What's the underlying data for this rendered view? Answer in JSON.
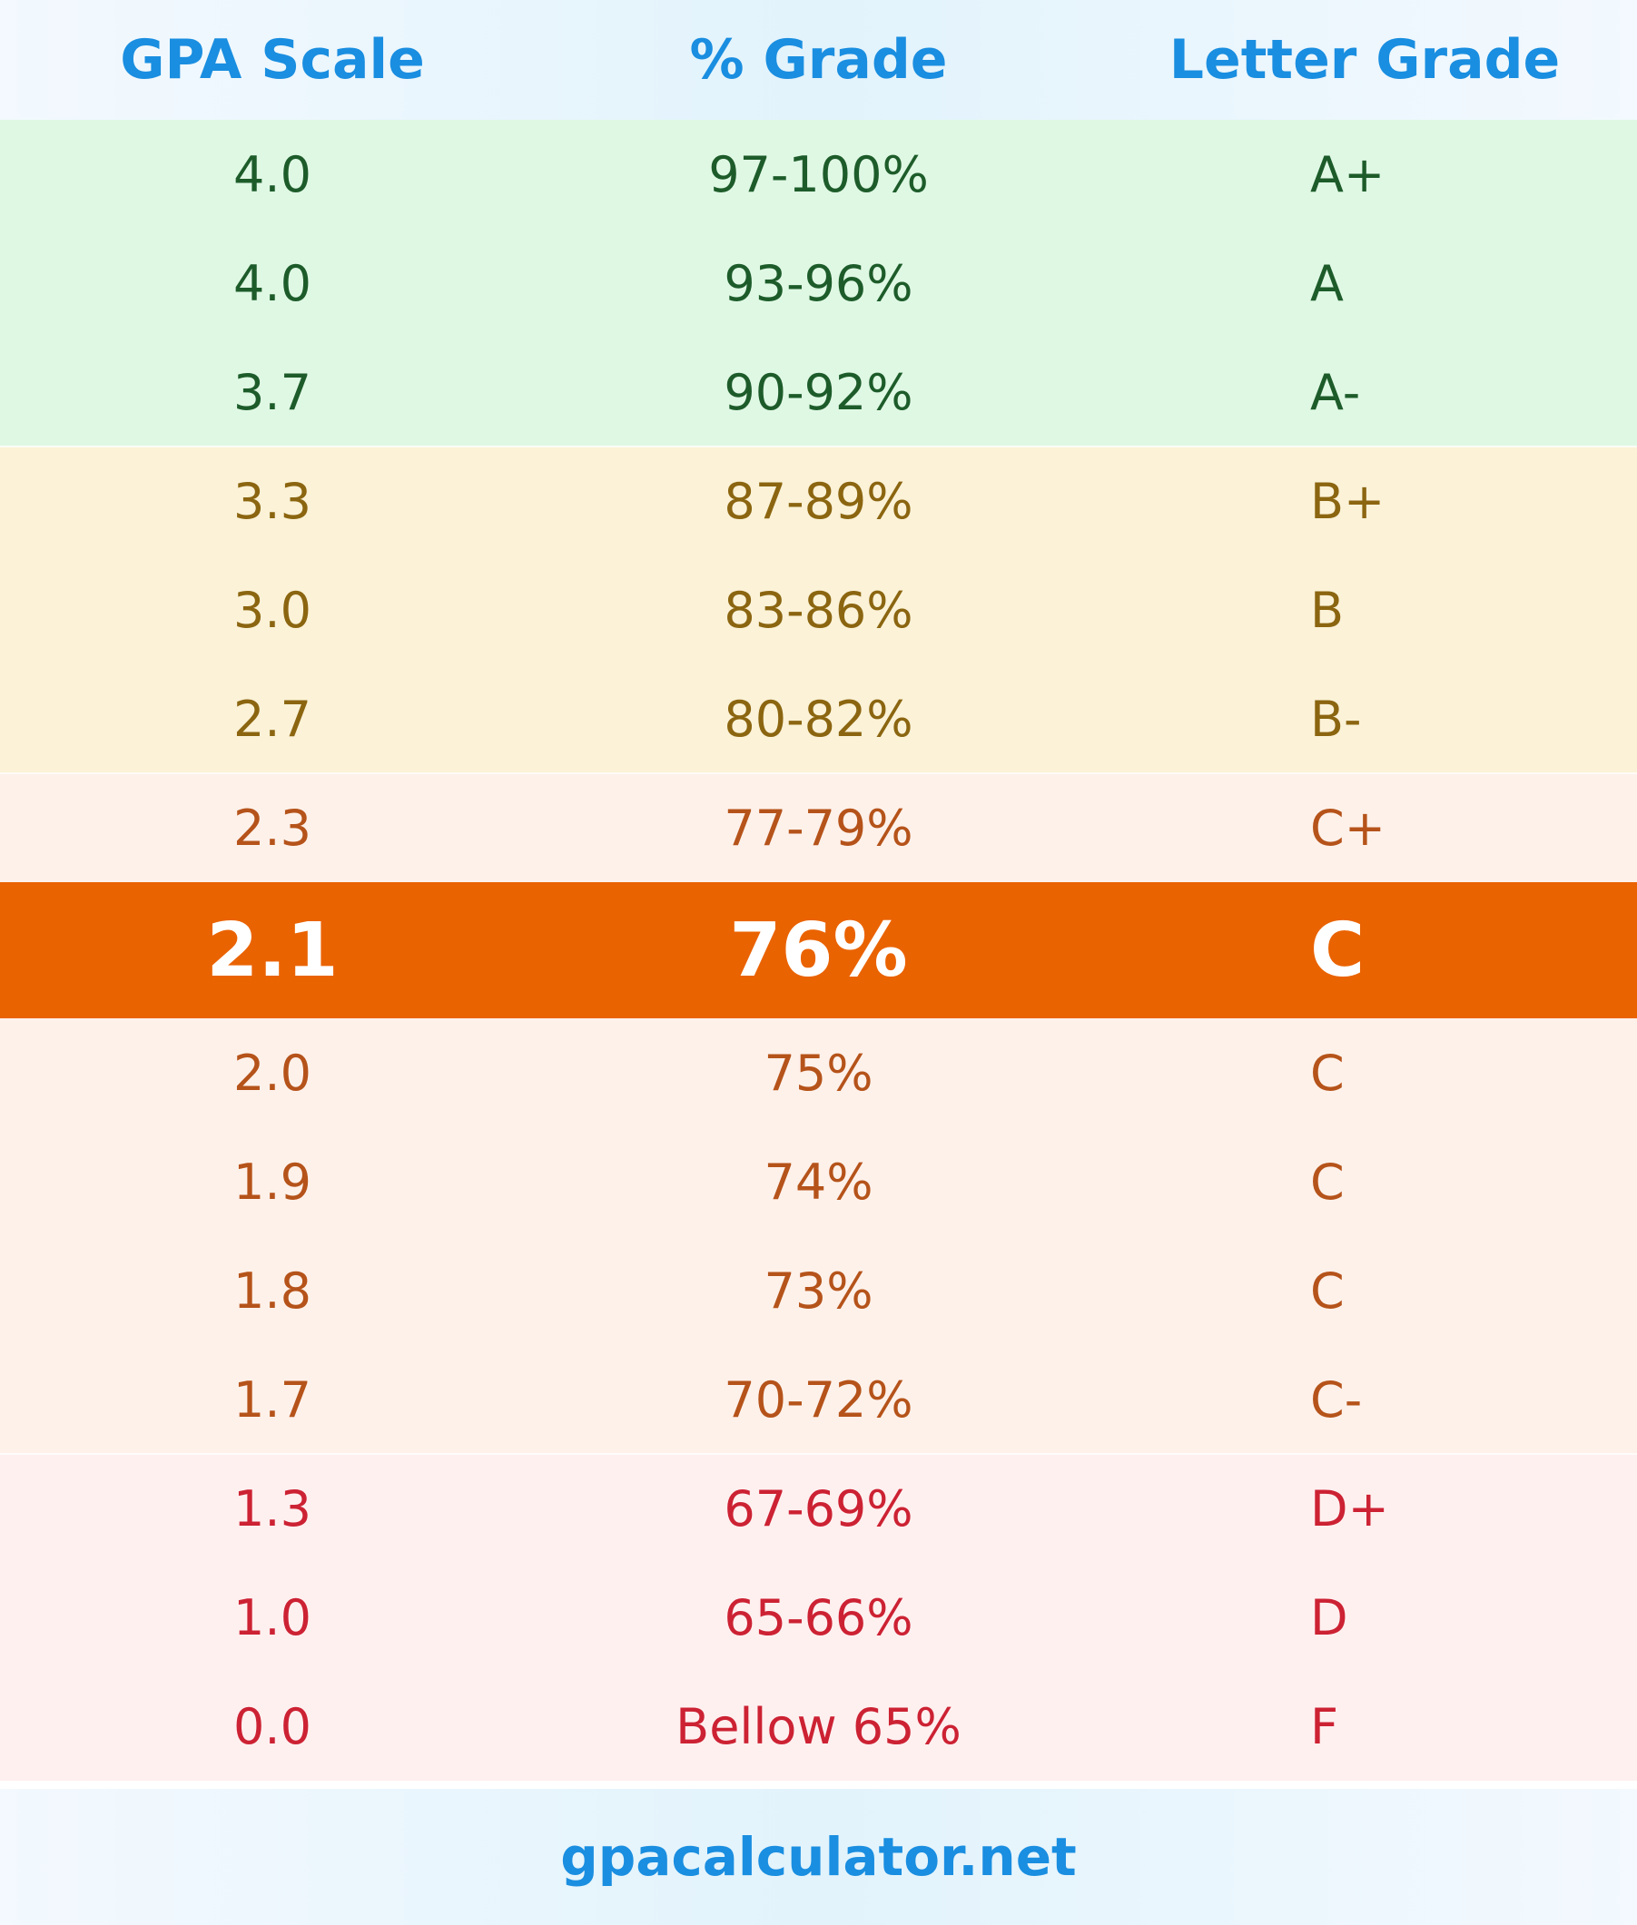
{
  "header": {
    "gpa_label": "GPA Scale",
    "percent_label": "% Grade",
    "letter_label": "Letter Grade"
  },
  "rows": [
    {
      "gpa": "4.0",
      "percent": "97-100%",
      "letter": "A+",
      "group": "green"
    },
    {
      "gpa": "4.0",
      "percent": "93-96%",
      "letter": "A",
      "group": "green"
    },
    {
      "gpa": "3.7",
      "percent": "90-92%",
      "letter": "A-",
      "group": "green"
    },
    {
      "gpa": "3.3",
      "percent": "87-89%",
      "letter": "B+",
      "group": "yellow"
    },
    {
      "gpa": "3.0",
      "percent": "83-86%",
      "letter": "B",
      "group": "yellow"
    },
    {
      "gpa": "2.7",
      "percent": "80-82%",
      "letter": "B-",
      "group": "yellow"
    },
    {
      "gpa": "2.3",
      "percent": "77-79%",
      "letter": "C+",
      "group": "orange"
    },
    {
      "gpa": "2.1",
      "percent": "76%",
      "letter": "C",
      "group": "highlight"
    },
    {
      "gpa": "2.0",
      "percent": "75%",
      "letter": "C",
      "group": "orange"
    },
    {
      "gpa": "1.9",
      "percent": "74%",
      "letter": "C",
      "group": "orange"
    },
    {
      "gpa": "1.8",
      "percent": "73%",
      "letter": "C",
      "group": "orange"
    },
    {
      "gpa": "1.7",
      "percent": "70-72%",
      "letter": "C-",
      "group": "orange"
    },
    {
      "gpa": "1.3",
      "percent": "67-69%",
      "letter": "D+",
      "group": "red"
    },
    {
      "gpa": "1.0",
      "percent": "65-66%",
      "letter": "D",
      "group": "red"
    },
    {
      "gpa": "0.0",
      "percent": "Bellow 65%",
      "letter": "F",
      "group": "red"
    }
  ],
  "footer": {
    "site": "gpacalculator.net"
  },
  "colors": {
    "header_text": "#1a8ee0",
    "green_bg": "#dff8e4",
    "yellow_bg": "#fbf2d7",
    "orange_bg": "#fef1ea",
    "red_bg": "#fff0f0",
    "highlight_bg": "#ea6301"
  }
}
